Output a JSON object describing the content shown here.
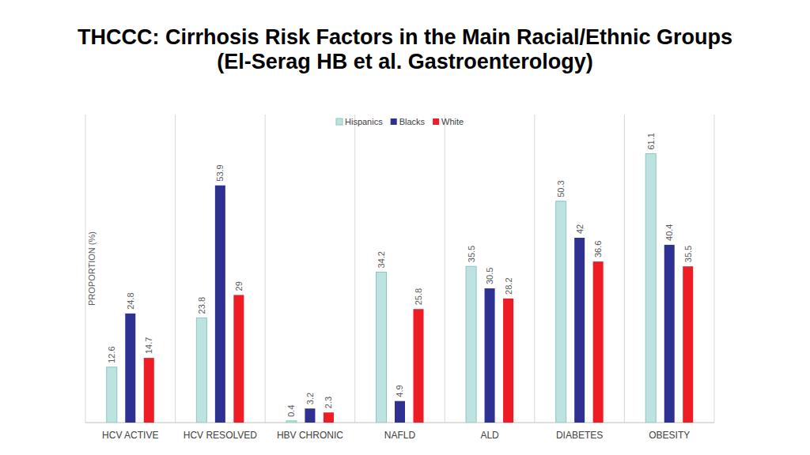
{
  "chart_data": {
    "type": "bar",
    "title": "THCCC: Cirrhosis Risk Factors in the Main Racial/Ethnic Groups",
    "subtitle": "(El-Serag HB et al. Gastroenterology)",
    "y_label": "PROPORTION (%)",
    "categories": [
      "HCV ACTIVE",
      "HCV RESOLVED",
      "HBV CHRONIC",
      "NAFLD",
      "ALD",
      "DIABETES",
      "OBESITY"
    ],
    "series": [
      {
        "name": "Hispanics",
        "color": "#bde3e0",
        "values": [
          12.6,
          23.8,
          0.4,
          34.2,
          35.5,
          50.3,
          61.1
        ]
      },
      {
        "name": "Blacks",
        "color": "#2e3192",
        "values": [
          24.8,
          53.9,
          3.2,
          4.9,
          30.5,
          42,
          40.4
        ]
      },
      {
        "name": "White",
        "color": "#ee1c24",
        "values": [
          14.7,
          29,
          2.3,
          25.8,
          28.2,
          36.6,
          35.5
        ]
      }
    ],
    "ylim": [
      0,
      70
    ],
    "tick_labels": "x",
    "legend": "top",
    "data_labels": true
  }
}
